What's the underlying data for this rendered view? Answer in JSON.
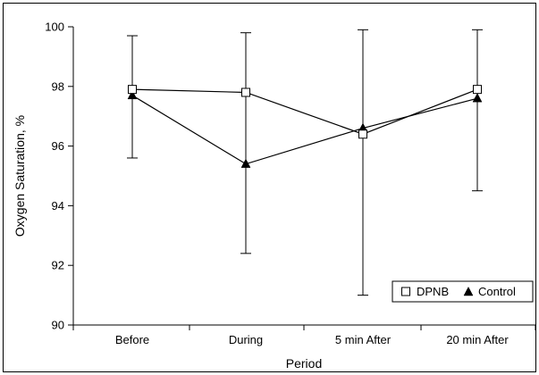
{
  "chart_data": {
    "type": "line",
    "title": "",
    "xlabel": "Period",
    "ylabel": "Oxygen Saturation, %",
    "categories": [
      "Before",
      "During",
      "5 min After",
      "20 min After"
    ],
    "ylim": [
      90,
      100
    ],
    "yticks": [
      90,
      92,
      94,
      96,
      98,
      100
    ],
    "grid": false,
    "legend_position": "bottom-right",
    "series": [
      {
        "name": "DPNB",
        "marker": "open-square",
        "color": "#000000",
        "values": [
          97.9,
          97.8,
          96.4,
          97.9
        ],
        "error_low": [
          95.6,
          92.4,
          91.0,
          94.5
        ],
        "error_high": [
          99.7,
          99.8,
          99.9,
          99.9
        ]
      },
      {
        "name": "Control",
        "marker": "filled-triangle",
        "color": "#000000",
        "values": [
          97.7,
          95.4,
          96.6,
          97.6
        ],
        "error_low": [],
        "error_high": []
      }
    ]
  }
}
